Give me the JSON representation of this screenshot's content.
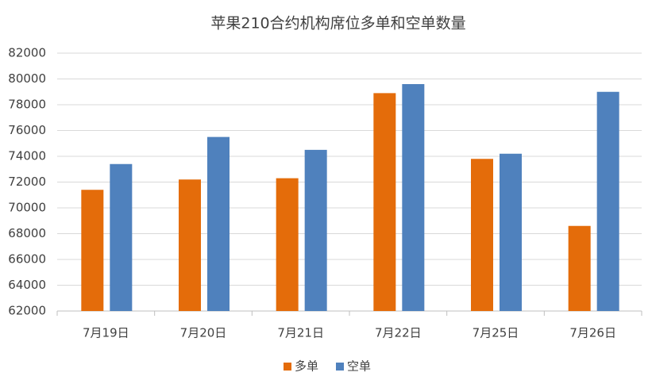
{
  "chart_data": {
    "type": "bar",
    "title": "苹果210合约机构席位多单和空单数量",
    "categories": [
      "7月19日",
      "7月20日",
      "7月21日",
      "7月22日",
      "7月25日",
      "7月26日"
    ],
    "series": [
      {
        "name": "多单",
        "color": "#e46c0a",
        "values": [
          71400,
          72200,
          72300,
          78900,
          73800,
          68600
        ]
      },
      {
        "name": "空单",
        "color": "#4f81bd",
        "values": [
          73400,
          75500,
          74500,
          79600,
          74200,
          79000
        ]
      }
    ],
    "ylim": [
      62000,
      82000
    ],
    "yticks": [
      62000,
      64000,
      66000,
      68000,
      70000,
      72000,
      74000,
      76000,
      78000,
      80000,
      82000
    ],
    "grid": true,
    "legend": "bottom"
  }
}
